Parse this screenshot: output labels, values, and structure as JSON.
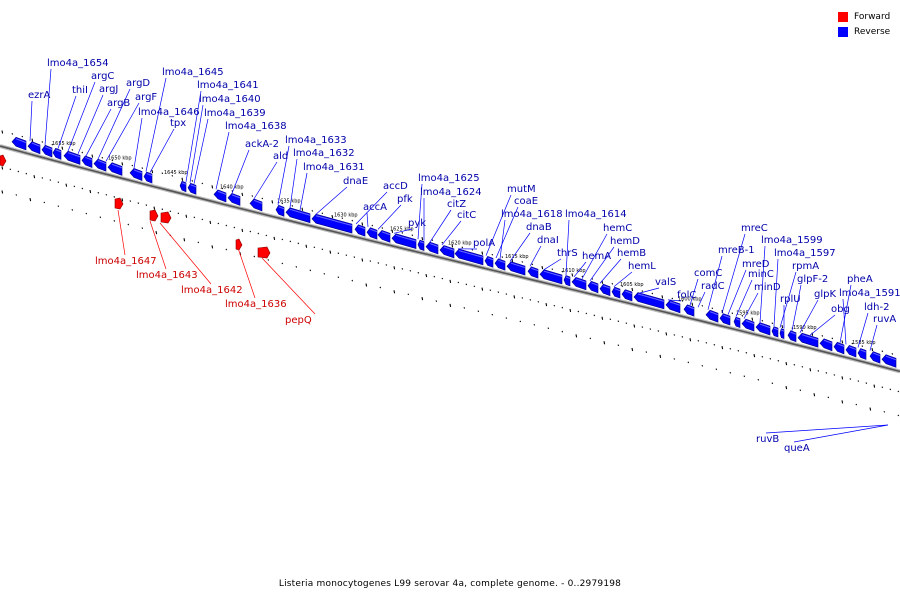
{
  "caption": "Listeria monocytogenes L99 serovar 4a, complete genome. - 0..2979198",
  "legend": [
    {
      "label": "Forward",
      "color": "#ff0000"
    },
    {
      "label": "Reverse",
      "color": "#0000ff"
    }
  ],
  "colors": {
    "forward": "#ff0000",
    "reverse": "#0000ff",
    "forward_label": "#cc0000",
    "reverse_label": "#0000aa",
    "backbone": "#777777"
  },
  "scale_labels": [
    "1655 kbp",
    "1650 kbp",
    "1645 kbp",
    "1640 kbp",
    "1635 kbp",
    "1630 kbp",
    "1625 kbp",
    "1620 kbp",
    "1615 kbp",
    "1610 kbp",
    "1605 kbp",
    "1600 kbp",
    "1595 kbp",
    "1590 kbp",
    "1585 kbp"
  ],
  "reverse_labels": [
    "ezrA",
    "lmo4a_1654",
    "thiI",
    "argC",
    "argJ",
    "argB",
    "argD",
    "argF",
    "lmo4a_1646",
    "lmo4a_1645",
    "tpx",
    "lmo4a_1641",
    "lmo4a_1640",
    "lmo4a_1639",
    "lmo4a_1638",
    "ackA-2",
    "ald",
    "lmo4a_1633",
    "lmo4a_1632",
    "lmo4a_1631",
    "dnaE",
    "accD",
    "accA",
    "pfk",
    "pyk",
    "lmo4a_1625",
    "lmo4a_1624",
    "citZ",
    "citC",
    "polA",
    "mutM",
    "coaE",
    "lmo4a_1618",
    "dnaB",
    "dnaI",
    "thrS",
    "lmo4a_1614",
    "hemA",
    "hemC",
    "hemD",
    "hemB",
    "hemL",
    "valS",
    "folC",
    "comC",
    "radC",
    "mreB-1",
    "mreC",
    "mreD",
    "minC",
    "minD",
    "lmo4a_1599",
    "lmo4a_1597",
    "rpmA",
    "rplU",
    "glpF-2",
    "glpK",
    "obg",
    "pheA",
    "lmo4a_1591",
    "ldh-2",
    "ruvA"
  ],
  "forward_labels": [
    "lmo4a_1647",
    "lmo4a_1643",
    "lmo4a_1642",
    "lmo4a_1636",
    "pepQ"
  ],
  "bottom_labels": [
    "ruvB",
    "queA"
  ]
}
